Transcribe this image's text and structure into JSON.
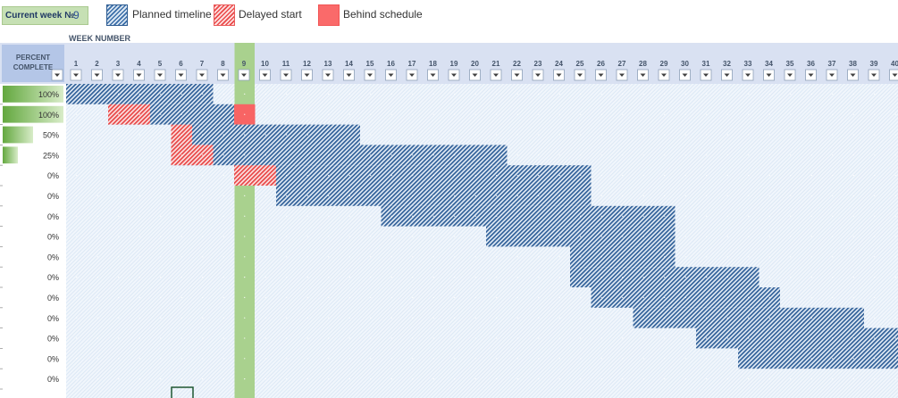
{
  "legend": {
    "current_week_label": "Current week №",
    "current_week_value": "9",
    "planned_label": "Planned timeline",
    "delayed_label": "Delayed start",
    "behind_label": "Behind schedule"
  },
  "grid": {
    "week_number_title": "WEEK NUMBER",
    "percent_header": [
      "PERCENT",
      "COMPLETE"
    ],
    "current_week": 9,
    "weeks": [
      "1",
      "2",
      "3",
      "4",
      "5",
      "6",
      "7",
      "8",
      "9",
      "10",
      "11",
      "12",
      "13",
      "14",
      "15",
      "16",
      "17",
      "18",
      "19",
      "20",
      "21",
      "22",
      "23",
      "24",
      "25",
      "26",
      "27",
      "28",
      "29",
      "30",
      "31",
      "32",
      "33",
      "34",
      "35",
      "36",
      "37",
      "38",
      "39",
      "40"
    ],
    "rows": [
      {
        "percent_label": "100%",
        "progress": 1.0,
        "planned": [
          1,
          7
        ],
        "delayed": null,
        "behind": null
      },
      {
        "percent_label": "100%",
        "progress": 1.0,
        "planned": [
          3,
          8
        ],
        "delayed": [
          3,
          4
        ],
        "behind": [
          9,
          9
        ]
      },
      {
        "percent_label": "50%",
        "progress": 0.5,
        "planned": [
          6,
          14
        ],
        "delayed": [
          6,
          6
        ],
        "behind": null
      },
      {
        "percent_label": "25%",
        "progress": 0.25,
        "planned": [
          6,
          21
        ],
        "delayed": [
          6,
          7
        ],
        "behind": null
      },
      {
        "percent_label": "0%",
        "progress": 0,
        "planned": [
          9,
          25
        ],
        "delayed": [
          9,
          10
        ],
        "behind": null
      },
      {
        "percent_label": "0%",
        "progress": 0,
        "planned": [
          11,
          25
        ],
        "delayed": null,
        "behind": null
      },
      {
        "percent_label": "0%",
        "progress": 0,
        "planned": [
          16,
          29
        ],
        "delayed": null,
        "behind": null
      },
      {
        "percent_label": "0%",
        "progress": 0,
        "planned": [
          21,
          29
        ],
        "delayed": null,
        "behind": null
      },
      {
        "percent_label": "0%",
        "progress": 0,
        "planned": [
          25,
          29
        ],
        "delayed": null,
        "behind": null
      },
      {
        "percent_label": "0%",
        "progress": 0,
        "planned": [
          25,
          33
        ],
        "delayed": null,
        "behind": null
      },
      {
        "percent_label": "0%",
        "progress": 0,
        "planned": [
          26,
          34
        ],
        "delayed": null,
        "behind": null
      },
      {
        "percent_label": "0%",
        "progress": 0,
        "planned": [
          28,
          38
        ],
        "delayed": null,
        "behind": null
      },
      {
        "percent_label": "0%",
        "progress": 0,
        "planned": [
          31,
          40
        ],
        "delayed": null,
        "behind": null
      },
      {
        "percent_label": "0%",
        "progress": 0,
        "planned": [
          33,
          40
        ],
        "delayed": null,
        "behind": null
      },
      {
        "percent_label": "0%",
        "progress": 0,
        "planned": null,
        "delayed": null,
        "behind": null
      }
    ],
    "colors": {
      "header_bg": "#d9e1f2",
      "cell_bg": "#eaf1fa",
      "planned": "#2f5f98",
      "delayed": "#e84545",
      "behind": "#f86464",
      "current_week": "#a9d18e",
      "progress": "#70ad47"
    }
  }
}
